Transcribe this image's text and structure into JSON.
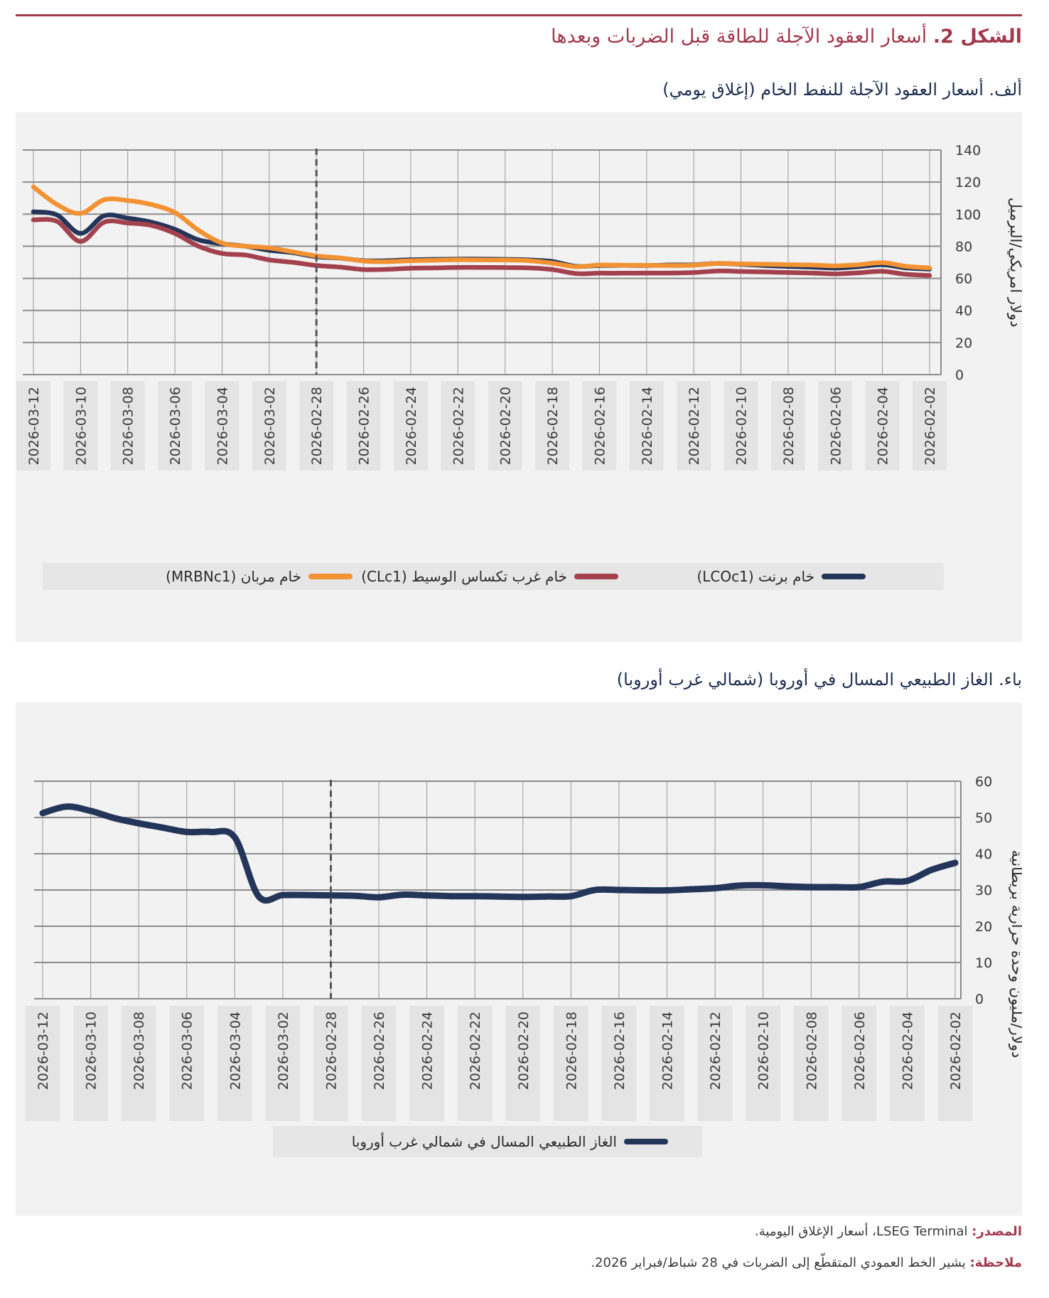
{
  "figure": {
    "label": "الشكل 2.",
    "title": "أسعار العقود الآجلة للطاقة قبل الضربات وبعدها"
  },
  "colors": {
    "accent": "#a23a4e",
    "brent": "#24355a",
    "wti": "#a3414f",
    "murban": "#f29233",
    "lng": "#24355a",
    "grid": "#8c8c8c",
    "dates_band": "#e6e6e6"
  },
  "chart_data": [
    {
      "type": "line",
      "title": "ألف. أسعار العقود الآجلة للنفط الخام (إغلاق يومي)",
      "xlabel": "",
      "ylabel": "دولار أمريكي/البرميل",
      "ylim": [
        0,
        140
      ],
      "yticks": [
        "0",
        "20",
        "40",
        "60",
        "80",
        "100",
        "120",
        "140"
      ],
      "x_order": "right-to-left",
      "x": [
        "2026-02-02",
        "2026-02-03",
        "2026-02-04",
        "2026-02-05",
        "2026-02-06",
        "2026-02-07",
        "2026-02-08",
        "2026-02-09",
        "2026-02-10",
        "2026-02-11",
        "2026-02-12",
        "2026-02-13",
        "2026-02-14",
        "2026-02-15",
        "2026-02-16",
        "2026-02-17",
        "2026-02-18",
        "2026-02-19",
        "2026-02-20",
        "2026-02-21",
        "2026-02-22",
        "2026-02-23",
        "2026-02-24",
        "2026-02-25",
        "2026-02-26",
        "2026-02-27",
        "2026-02-28",
        "2026-03-01",
        "2026-03-02",
        "2026-03-03",
        "2026-03-04",
        "2026-03-05",
        "2026-03-06",
        "2026-03-07",
        "2026-03-08",
        "2026-03-09",
        "2026-03-10",
        "2026-03-11",
        "2026-03-12"
      ],
      "tick_labels": [
        "2026-02-02",
        "2026-02-04",
        "2026-02-06",
        "2026-02-08",
        "2026-02-10",
        "2026-02-12",
        "2026-02-14",
        "2026-02-16",
        "2026-02-18",
        "2026-02-20",
        "2026-02-22",
        "2026-02-24",
        "2026-02-26",
        "2026-02-28",
        "2026-03-02",
        "2026-03-04",
        "2026-03-06",
        "2026-03-08",
        "2026-03-10",
        "2026-03-12"
      ],
      "vline": {
        "x": "2026-02-28",
        "style": "dashed"
      },
      "grid": true,
      "legend_position": "bottom",
      "series": [
        {
          "name": "خام برنت (LCOc1)",
          "color": "#24355a",
          "values": [
            65.8,
            66.5,
            68.5,
            67.3,
            66.4,
            67.0,
            67.4,
            68.0,
            68.8,
            69.3,
            68.4,
            68.3,
            68.0,
            68.1,
            68.0,
            67.5,
            70.5,
            71.5,
            71.8,
            72.0,
            72.0,
            71.8,
            71.6,
            71.0,
            71.0,
            72.6,
            73.5,
            76.0,
            77.5,
            80.0,
            81.5,
            84.0,
            90.5,
            95.0,
            97.5,
            99.0,
            88.0,
            99.5,
            101.5
          ]
        },
        {
          "name": "خام غرب تكساس الوسيط (CLc1)",
          "color": "#a3414f",
          "values": [
            61.8,
            62.5,
            64.4,
            63.5,
            62.8,
            63.3,
            63.6,
            64.0,
            64.3,
            64.6,
            63.6,
            63.3,
            63.3,
            63.2,
            63.2,
            63.0,
            65.5,
            66.5,
            66.7,
            66.8,
            66.8,
            66.5,
            66.3,
            65.6,
            65.5,
            67.0,
            68.0,
            70.0,
            71.5,
            74.5,
            75.5,
            80.0,
            88.0,
            93.0,
            94.5,
            95.0,
            83.0,
            95.5,
            96.5
          ]
        },
        {
          "name": "خام مربان (MRBNc1)",
          "color": "#f29233",
          "values": [
            66.5,
            67.5,
            69.8,
            68.5,
            67.8,
            68.3,
            68.5,
            68.8,
            69.0,
            69.3,
            68.2,
            68.0,
            68.1,
            68.2,
            68.3,
            67.3,
            69.5,
            71.0,
            71.4,
            71.5,
            71.6,
            71.3,
            71.0,
            70.4,
            70.8,
            72.7,
            74.0,
            76.5,
            79.0,
            80.0,
            82.0,
            90.0,
            101.0,
            106.0,
            108.5,
            109.0,
            100.5,
            106.0,
            117.0
          ]
        }
      ]
    },
    {
      "type": "line",
      "title": "باء. الغاز الطبيعي المسال في أوروبا (شمالي غرب أوروبا)",
      "xlabel": "",
      "ylabel": "دولار/مليون وحدة حرارية بريطانية",
      "ylim": [
        0,
        60
      ],
      "yticks": [
        "0",
        "10",
        "20",
        "30",
        "40",
        "50",
        "60"
      ],
      "x_order": "right-to-left",
      "x": [
        "2026-02-02",
        "2026-02-03",
        "2026-02-04",
        "2026-02-05",
        "2026-02-06",
        "2026-02-07",
        "2026-02-08",
        "2026-02-09",
        "2026-02-10",
        "2026-02-11",
        "2026-02-12",
        "2026-02-13",
        "2026-02-14",
        "2026-02-15",
        "2026-02-16",
        "2026-02-17",
        "2026-02-18",
        "2026-02-19",
        "2026-02-20",
        "2026-02-21",
        "2026-02-22",
        "2026-02-23",
        "2026-02-24",
        "2026-02-25",
        "2026-02-26",
        "2026-02-27",
        "2026-02-28",
        "2026-03-01",
        "2026-03-02",
        "2026-03-03",
        "2026-03-04",
        "2026-03-05",
        "2026-03-06",
        "2026-03-07",
        "2026-03-08",
        "2026-03-09",
        "2026-03-10",
        "2026-03-11",
        "2026-03-12"
      ],
      "tick_labels": [
        "2026-02-02",
        "2026-02-04",
        "2026-02-06",
        "2026-02-08",
        "2026-02-10",
        "2026-02-12",
        "2026-02-14",
        "2026-02-16",
        "2026-02-18",
        "2026-02-20",
        "2026-02-22",
        "2026-02-24",
        "2026-02-26",
        "2026-02-28",
        "2026-03-02",
        "2026-03-04",
        "2026-03-06",
        "2026-03-08",
        "2026-03-10",
        "2026-03-12"
      ],
      "vline": {
        "x": "2026-02-28",
        "style": "dashed"
      },
      "grid": true,
      "legend_position": "bottom",
      "series": [
        {
          "name": "الغاز الطبيعي المسال في شمالي غرب أوروبا",
          "color": "#24355a",
          "values": [
            37.5,
            35.5,
            32.5,
            32.3,
            30.8,
            30.8,
            30.8,
            31.0,
            31.3,
            31.2,
            30.5,
            30.2,
            29.9,
            29.9,
            30.0,
            30.0,
            28.3,
            28.2,
            28.1,
            28.2,
            28.3,
            28.3,
            28.5,
            28.7,
            28.0,
            28.4,
            28.5,
            28.6,
            28.6,
            28.2,
            44.5,
            46.0,
            46.0,
            47.2,
            48.4,
            49.8,
            51.8,
            53.0,
            51.2
          ]
        }
      ]
    }
  ],
  "footnotes": {
    "source_label": "المصدر:",
    "source_text": "LSEG Terminal، أسعار الإغلاق اليومية.",
    "note_label": "ملاحظة:",
    "note_text": "يشير الخط العمودي المتقطّع إلى الضربات في 28 شباط/فبراير 2026."
  }
}
